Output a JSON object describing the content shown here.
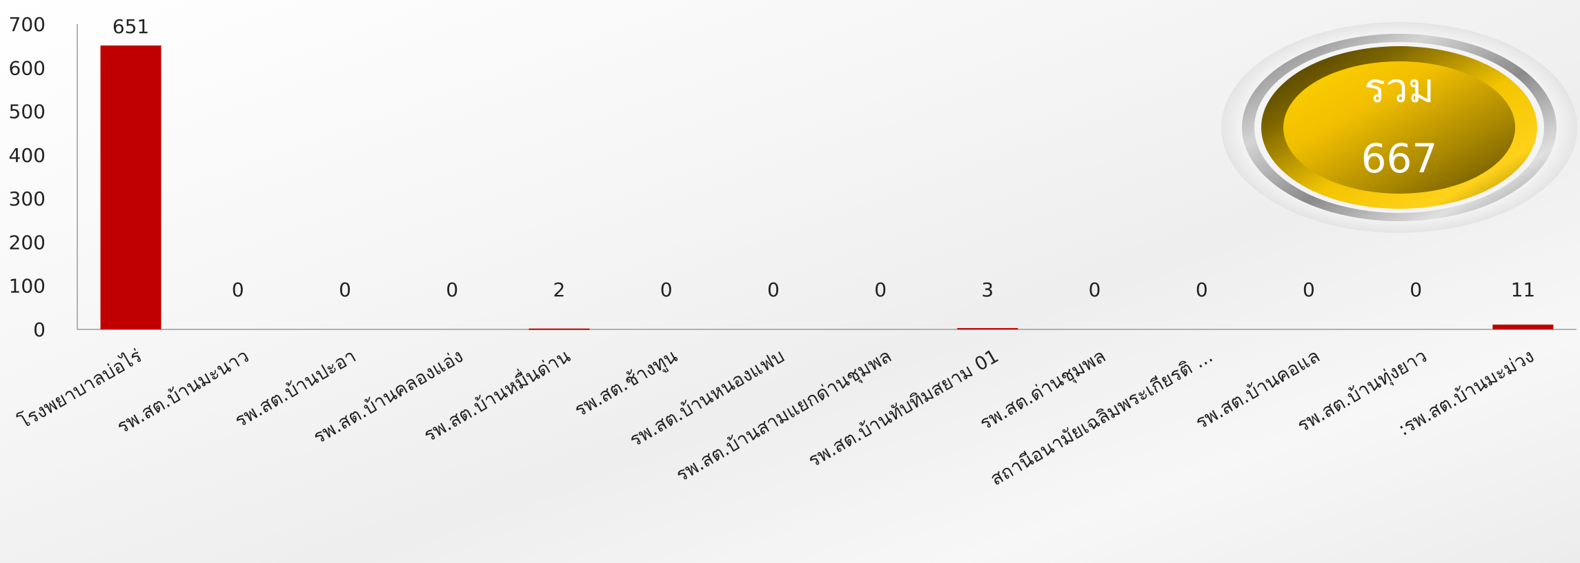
{
  "chart_data": {
    "type": "bar",
    "title": "",
    "xlabel": "",
    "ylabel": "",
    "ylim": [
      0,
      700
    ],
    "yticks": [
      0,
      100,
      200,
      300,
      400,
      500,
      600,
      700
    ],
    "grid": false,
    "legend": "none",
    "bar_color": "#c00000",
    "categories": [
      "โรงพยาบาลบ่อไร่",
      "รพ.สต.บ้านมะนาว",
      "รพ.สต.บ้านปะอา",
      "รพ.สต.บ้านคลองแอ่ง",
      "รพ.สต.บ้านหมื่นด่าน",
      "รพ.สต.ช้างทูน",
      "รพ.สต.บ้านหนองแฟบ",
      "รพ.สต.บ้านสามแยกด่านชุมพล",
      "รพ.สต.บ้านทับทิมสยาม 01",
      "รพ.สต.ด่านชุมพล",
      "สถานีอนามัยเฉลิมพระเกียรติ ...",
      "รพ.สต.บ้านคอแล",
      "รพ.สต.บ้านทุ่งยาว",
      ":รพ.สต.บ้านมะม่วง"
    ],
    "values": [
      651,
      0,
      0,
      0,
      2,
      0,
      0,
      0,
      3,
      0,
      0,
      0,
      0,
      11
    ]
  },
  "total_badge": {
    "label": "รวม",
    "value": "667"
  }
}
